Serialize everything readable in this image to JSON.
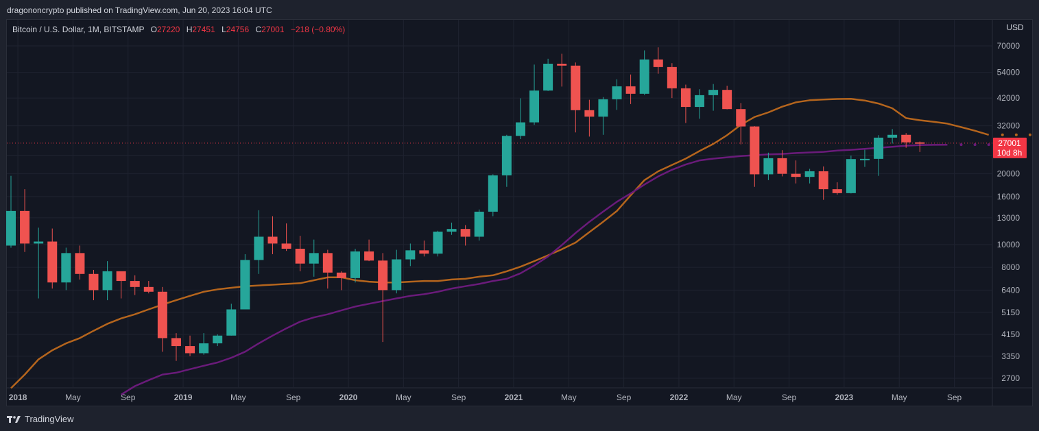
{
  "header": {
    "published": "dragononcrypto published on TradingView.com, Jun 20, 2023 16:04 UTC"
  },
  "legend": {
    "symbol": "Bitcoin / U.S. Dollar, 1M, BITSTAMP",
    "o_label": "O",
    "o_value": "27220",
    "h_label": "H",
    "h_value": "27451",
    "l_label": "L",
    "l_value": "24756",
    "c_label": "C",
    "c_value": "27001",
    "change": "−218 (−0.80%)"
  },
  "footer": {
    "brand": "TradingView"
  },
  "colors": {
    "up": "#26a69a",
    "down": "#ef5350",
    "ma_orange": "#b5651d",
    "ma_purple": "#6a1b7a",
    "price_tag": "#f23645"
  },
  "chart_data": {
    "type": "candlestick",
    "scale": "log",
    "currency_label": "USD",
    "y_ticks": [
      2700,
      3350,
      4150,
      5150,
      6400,
      8000,
      10000,
      13000,
      16000,
      20000,
      24000,
      32000,
      42000,
      54000,
      70000
    ],
    "y_tick_labels": [
      "2700",
      "3350",
      "4150",
      "5150",
      "6400",
      "8000",
      "10000",
      "13000",
      "16000",
      "20000",
      "",
      "32000",
      "42000",
      "54000",
      "70000"
    ],
    "x_labels": [
      {
        "i": 1,
        "t": "2018",
        "bold": true
      },
      {
        "i": 5,
        "t": "May"
      },
      {
        "i": 9,
        "t": "Sep"
      },
      {
        "i": 13,
        "t": "2019",
        "bold": true
      },
      {
        "i": 17,
        "t": "May"
      },
      {
        "i": 21,
        "t": "Sep"
      },
      {
        "i": 25,
        "t": "2020",
        "bold": true
      },
      {
        "i": 29,
        "t": "May"
      },
      {
        "i": 33,
        "t": "Sep"
      },
      {
        "i": 37,
        "t": "2021",
        "bold": true
      },
      {
        "i": 41,
        "t": "May"
      },
      {
        "i": 45,
        "t": "Sep"
      },
      {
        "i": 49,
        "t": "2022",
        "bold": true
      },
      {
        "i": 53,
        "t": "May"
      },
      {
        "i": 57,
        "t": "Sep"
      },
      {
        "i": 61,
        "t": "2023",
        "bold": true
      },
      {
        "i": 65,
        "t": "May"
      },
      {
        "i": 69,
        "t": "Sep"
      }
    ],
    "candles": [
      [
        "Dec 2017",
        9900,
        19600,
        9700,
        13900
      ],
      [
        "Jan 2018",
        13900,
        17200,
        9300,
        10100
      ],
      [
        "Feb 2018",
        10100,
        11800,
        5900,
        10300
      ],
      [
        "Mar 2018",
        10300,
        11700,
        6500,
        6900
      ],
      [
        "Apr 2018",
        6900,
        9700,
        6400,
        9200
      ],
      [
        "May 2018",
        9200,
        9900,
        7100,
        7500
      ],
      [
        "Jun 2018",
        7500,
        7800,
        5800,
        6400
      ],
      [
        "Jul 2018",
        6400,
        8500,
        5800,
        7700
      ],
      [
        "Aug 2018",
        7700,
        7500,
        5900,
        7000
      ],
      [
        "Sep 2018",
        7000,
        7400,
        6100,
        6600
      ],
      [
        "Oct 2018",
        6600,
        7000,
        6200,
        6300
      ],
      [
        "Nov 2018",
        6300,
        6600,
        3500,
        4000
      ],
      [
        "Dec 2018",
        4000,
        4200,
        3200,
        3700
      ],
      [
        "Jan 2019",
        3700,
        4100,
        3350,
        3450
      ],
      [
        "Feb 2019",
        3450,
        4200,
        3400,
        3800
      ],
      [
        "Mar 2019",
        3800,
        4150,
        3700,
        4100
      ],
      [
        "Apr 2019",
        4100,
        5600,
        4100,
        5300
      ],
      [
        "May 2019",
        5300,
        9100,
        5300,
        8600
      ],
      [
        "Jun 2019",
        8600,
        14000,
        7500,
        10800
      ],
      [
        "Jul 2019",
        10800,
        13200,
        9100,
        10100
      ],
      [
        "Aug 2019",
        10100,
        12300,
        9400,
        9600
      ],
      [
        "Sep 2019",
        9600,
        10900,
        7700,
        8300
      ],
      [
        "Oct 2019",
        8300,
        10500,
        7300,
        9200
      ],
      [
        "Nov 2019",
        9200,
        9500,
        6500,
        7600
      ],
      [
        "Dec 2019",
        7600,
        7700,
        6400,
        7200
      ],
      [
        "Jan 2020",
        7200,
        9600,
        6900,
        9350
      ],
      [
        "Feb 2020",
        9350,
        10500,
        8500,
        8550
      ],
      [
        "Mar 2020",
        8550,
        9200,
        3850,
        6400
      ],
      [
        "Apr 2020",
        6400,
        9500,
        6200,
        8650
      ],
      [
        "May 2020",
        8650,
        10100,
        8100,
        9450
      ],
      [
        "Jun 2020",
        9450,
        10400,
        8900,
        9150
      ],
      [
        "Jul 2020",
        9150,
        11450,
        8900,
        11350
      ],
      [
        "Aug 2020",
        11350,
        12400,
        11000,
        11650
      ],
      [
        "Sep 2020",
        11650,
        12100,
        9900,
        10800
      ],
      [
        "Oct 2020",
        10800,
        14100,
        10400,
        13800
      ],
      [
        "Nov 2020",
        13800,
        19900,
        13200,
        19700
      ],
      [
        "Dec 2020",
        19700,
        29300,
        17600,
        29000
      ],
      [
        "Jan 2021",
        29000,
        41900,
        28100,
        33100
      ],
      [
        "Feb 2021",
        33100,
        58300,
        32300,
        45200
      ],
      [
        "Mar 2021",
        45200,
        61700,
        45000,
        58800
      ],
      [
        "Apr 2021",
        58800,
        64800,
        47000,
        57700
      ],
      [
        "May 2021",
        57700,
        59500,
        30000,
        37300
      ],
      [
        "Jun 2021",
        37300,
        41300,
        28800,
        35000
      ],
      [
        "Jul 2021",
        35000,
        42400,
        29300,
        41500
      ],
      [
        "Aug 2021",
        41500,
        50500,
        37400,
        47100
      ],
      [
        "Sep 2021",
        47100,
        52900,
        39600,
        43800
      ],
      [
        "Oct 2021",
        43800,
        67000,
        43300,
        61300
      ],
      [
        "Nov 2021",
        61300,
        69000,
        53300,
        56900
      ],
      [
        "Dec 2021",
        56900,
        59100,
        42000,
        46200
      ],
      [
        "Jan 2022",
        46200,
        47900,
        32900,
        38500
      ],
      [
        "Feb 2022",
        38500,
        45800,
        34300,
        43200
      ],
      [
        "Mar 2022",
        43200,
        48200,
        37100,
        45500
      ],
      [
        "Apr 2022",
        45500,
        47400,
        37600,
        37700
      ],
      [
        "May 2022",
        37700,
        40000,
        26700,
        31800
      ],
      [
        "Jun 2022",
        31800,
        31900,
        17600,
        19900
      ],
      [
        "Jul 2022",
        19900,
        24600,
        18800,
        23300
      ],
      [
        "Aug 2022",
        23300,
        25200,
        19500,
        20000
      ],
      [
        "Sep 2022",
        20000,
        22800,
        18200,
        19400
      ],
      [
        "Oct 2022",
        19400,
        21000,
        18200,
        20500
      ],
      [
        "Nov 2022",
        20500,
        21500,
        15500,
        17200
      ],
      [
        "Dec 2022",
        17200,
        18400,
        16300,
        16550
      ],
      [
        "Jan 2023",
        16550,
        23900,
        16500,
        23100
      ],
      [
        "Feb 2023",
        23100,
        25300,
        21400,
        23150
      ],
      [
        "Mar 2023",
        23150,
        29200,
        19600,
        28500
      ],
      [
        "Apr 2023",
        28500,
        31000,
        26900,
        29300
      ],
      [
        "May 2023",
        29300,
        29800,
        25800,
        27220
      ],
      [
        "Jun 2023",
        27220,
        27451,
        24756,
        27001
      ]
    ],
    "series": [
      {
        "color": "#b5651d",
        "start_index": 0,
        "values": [
          2450,
          2800,
          3250,
          3550,
          3800,
          4000,
          4300,
          4600,
          4850,
          5050,
          5300,
          5550,
          5800,
          6050,
          6300,
          6450,
          6550,
          6650,
          6700,
          6750,
          6800,
          6850,
          7050,
          7250,
          7250,
          7050,
          6950,
          6900,
          6900,
          6950,
          7000,
          7000,
          7100,
          7150,
          7300,
          7400,
          7700,
          8050,
          8500,
          9000,
          9550,
          10200,
          11300,
          12500,
          13900,
          16200,
          18800,
          20500,
          21800,
          23200,
          25000,
          26800,
          29200,
          32300,
          34900,
          36500,
          38600,
          40300,
          41100,
          41400,
          41600,
          41700,
          41000,
          39800,
          38000,
          34500,
          33800,
          33300,
          32700,
          31600,
          30500,
          29300
        ]
      },
      {
        "color": "#6a1b7a",
        "start_index": 8,
        "values": [
          2300,
          2500,
          2650,
          2800,
          2850,
          2950,
          3050,
          3150,
          3300,
          3500,
          3800,
          4100,
          4400,
          4700,
          4900,
          5050,
          5250,
          5450,
          5600,
          5750,
          5900,
          6050,
          6150,
          6300,
          6500,
          6650,
          6800,
          7000,
          7150,
          7550,
          8150,
          8900,
          9950,
          11200,
          12500,
          13800,
          15200,
          16500,
          18000,
          19500,
          20800,
          21900,
          22800,
          23200,
          23500,
          23800,
          24000,
          24200,
          24300,
          24500,
          24650,
          24800,
          25100,
          25300,
          25550,
          25800,
          26050,
          26350,
          26500,
          26550,
          26600
        ]
      }
    ],
    "last_price": 27001,
    "last_price_label": "27001",
    "countdown_label": "10d 8h"
  }
}
